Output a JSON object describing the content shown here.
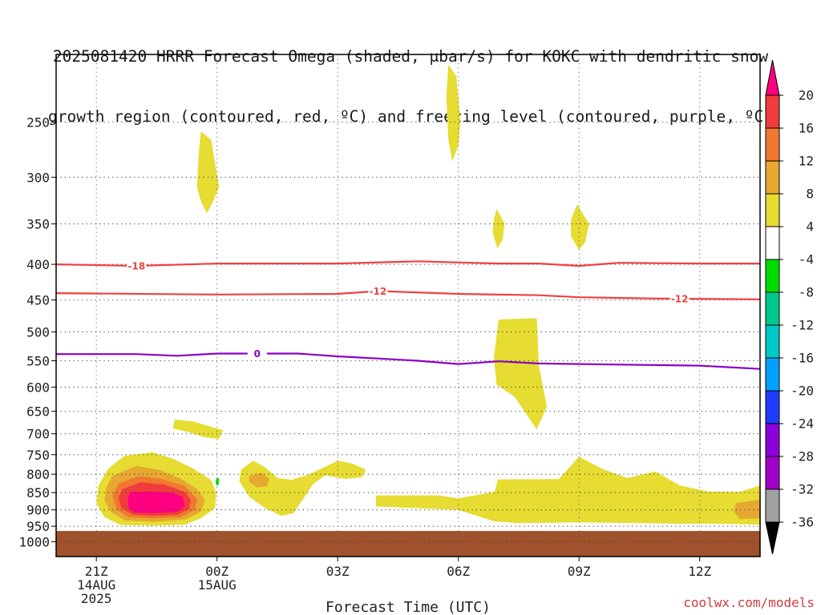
{
  "title_line1": "2025081420 HRRR Forecast Omega (shaded, μbar/s) for KOKC with dendritic snow",
  "title_line2": "growth region (contoured, red, ºC) and freezing level (contoured, purple, ºC)",
  "credit": "coolwx.com/models",
  "chart_data": {
    "type": "contour",
    "title": "2025081420 HRRR Forecast Omega (shaded, μbar/s) for KOKC with dendritic snow growth region (contoured, red, ºC) and freezing level (contoured, purple, ºC)",
    "xlabel": "Forecast Time (UTC)",
    "ylabel": "",
    "xlim": [
      -1,
      16.5
    ],
    "ylim": [
      1050,
      200
    ],
    "y_scale": "log",
    "grid": true,
    "x_ticks": [
      {
        "value": 0,
        "lines": [
          "21Z",
          "14AUG",
          "2025"
        ]
      },
      {
        "value": 3,
        "lines": [
          "00Z",
          "15AUG"
        ]
      },
      {
        "value": 6,
        "lines": [
          "03Z"
        ]
      },
      {
        "value": 9,
        "lines": [
          "06Z"
        ]
      },
      {
        "value": 12,
        "lines": [
          "09Z"
        ]
      },
      {
        "value": 15,
        "lines": [
          "12Z"
        ]
      }
    ],
    "y_ticks": [
      250,
      300,
      350,
      400,
      450,
      500,
      550,
      600,
      650,
      700,
      750,
      800,
      850,
      900,
      950,
      1000
    ],
    "colorbar": {
      "labels": [
        "20",
        "16",
        "12",
        "8",
        "4",
        "-4",
        "-8",
        "-12",
        "-16",
        "-20",
        "-24",
        "-28",
        "-32",
        "-36"
      ],
      "bins": [
        {
          "color": "#ff0080",
          "range": "above 20"
        },
        {
          "color": "#f03c3c",
          "range": "16 to 20"
        },
        {
          "color": "#f07830",
          "range": "12 to 16"
        },
        {
          "color": "#e6a830",
          "range": "8 to 12"
        },
        {
          "color": "#e6dc32",
          "range": "4 to 8"
        },
        {
          "color": "#ffffff",
          "range": "-4 to 4"
        },
        {
          "color": "#00dc00",
          "range": "-8 to -4"
        },
        {
          "color": "#00c88c",
          "range": "-12 to -8"
        },
        {
          "color": "#00c8c8",
          "range": "-16 to -12"
        },
        {
          "color": "#00a0ff",
          "range": "-20 to -16"
        },
        {
          "color": "#1e3cff",
          "range": "-24 to -20"
        },
        {
          "color": "#8c00dc",
          "range": "-28 to -24"
        },
        {
          "color": "#a000c8",
          "range": "-32 to -28"
        },
        {
          "color": "#a0a0a0",
          "range": "-36 to -32"
        },
        {
          "color": "#000000",
          "range": "below -36"
        }
      ]
    },
    "contours": [
      {
        "name": "-18",
        "color": "#f04040",
        "label_at": [
          1,
          400
        ],
        "points": [
          [
            -1,
            400
          ],
          [
            1,
            402
          ],
          [
            3,
            399
          ],
          [
            6,
            399
          ],
          [
            8,
            396
          ],
          [
            10,
            399
          ],
          [
            11,
            399
          ],
          [
            12,
            402
          ],
          [
            13,
            398
          ],
          [
            15,
            399
          ],
          [
            16.5,
            399
          ]
        ]
      },
      {
        "name": "-12",
        "color": "#f04040",
        "label_at": [
          7,
          442
        ],
        "label_at2": [
          14.5,
          448
        ],
        "points": [
          [
            -1,
            440
          ],
          [
            3,
            442
          ],
          [
            6,
            441
          ],
          [
            7,
            437
          ],
          [
            9,
            441
          ],
          [
            11,
            443
          ],
          [
            12,
            446
          ],
          [
            14,
            448
          ],
          [
            16.5,
            449
          ]
        ]
      },
      {
        "name": "0",
        "color": "#8c00c8",
        "label_at": [
          4,
          538
        ],
        "points": [
          [
            -1,
            538
          ],
          [
            1,
            538
          ],
          [
            2,
            541
          ],
          [
            3,
            537
          ],
          [
            5,
            537
          ],
          [
            6,
            542
          ],
          [
            7,
            546
          ],
          [
            8,
            550
          ],
          [
            9,
            556
          ],
          [
            10,
            551
          ],
          [
            11,
            555
          ],
          [
            13,
            557
          ],
          [
            15,
            559
          ],
          [
            16.5,
            565
          ]
        ]
      }
    ],
    "shaded_regions": [
      {
        "level": "4 to 8",
        "points": [
          [
            2.6,
            258
          ],
          [
            2.85,
            265
          ],
          [
            3.05,
            310
          ],
          [
            2.9,
            325
          ],
          [
            2.75,
            338
          ],
          [
            2.6,
            325
          ],
          [
            2.5,
            310
          ],
          [
            2.55,
            275
          ]
        ]
      },
      {
        "level": "4 to 8",
        "points": [
          [
            8.75,
            207
          ],
          [
            8.95,
            215
          ],
          [
            9.05,
            250
          ],
          [
            9.0,
            270
          ],
          [
            8.85,
            285
          ],
          [
            8.75,
            265
          ],
          [
            8.7,
            230
          ]
        ]
      },
      {
        "level": "4 to 8",
        "points": [
          [
            9.95,
            333
          ],
          [
            10.15,
            350
          ],
          [
            10.1,
            368
          ],
          [
            9.97,
            380
          ],
          [
            9.85,
            360
          ],
          [
            9.88,
            345
          ]
        ]
      },
      {
        "level": "4 to 8",
        "points": [
          [
            11.95,
            328
          ],
          [
            12.25,
            350
          ],
          [
            12.15,
            372
          ],
          [
            12.0,
            381
          ],
          [
            11.8,
            365
          ],
          [
            11.8,
            345
          ]
        ]
      },
      {
        "level": "4 to 8",
        "points": [
          [
            10.0,
            480
          ],
          [
            10.95,
            478
          ],
          [
            11.0,
            560
          ],
          [
            11.2,
            640
          ],
          [
            10.95,
            690
          ],
          [
            10.4,
            620
          ],
          [
            9.95,
            595
          ],
          [
            9.88,
            545
          ]
        ]
      },
      {
        "level": "4 to 8",
        "points": [
          [
            1.95,
            668
          ],
          [
            2.4,
            672
          ],
          [
            3.15,
            692
          ],
          [
            3.05,
            712
          ],
          [
            2.7,
            708
          ],
          [
            2.25,
            695
          ],
          [
            1.9,
            688
          ]
        ]
      },
      {
        "level": "4 to 8",
        "points": [
          [
            0.7,
            753
          ],
          [
            1.4,
            744
          ],
          [
            1.9,
            760
          ],
          [
            2.4,
            785
          ],
          [
            2.85,
            815
          ],
          [
            2.98,
            850
          ],
          [
            2.95,
            895
          ],
          [
            2.6,
            925
          ],
          [
            2.2,
            945
          ],
          [
            1.4,
            948
          ],
          [
            0.6,
            946
          ],
          [
            0.2,
            922
          ],
          [
            0.0,
            880
          ],
          [
            0.05,
            830
          ],
          [
            0.3,
            785
          ]
        ]
      },
      {
        "level": "4 to 8",
        "points": [
          [
            3.6,
            788
          ],
          [
            3.9,
            765
          ],
          [
            4.2,
            782
          ],
          [
            4.5,
            810
          ],
          [
            4.85,
            815
          ],
          [
            5.3,
            800
          ],
          [
            5.7,
            780
          ],
          [
            6.0,
            765
          ],
          [
            6.35,
            772
          ],
          [
            6.7,
            788
          ],
          [
            6.6,
            808
          ],
          [
            6.2,
            813
          ],
          [
            5.7,
            803
          ],
          [
            5.4,
            825
          ],
          [
            5.1,
            875
          ],
          [
            4.9,
            910
          ],
          [
            4.6,
            918
          ],
          [
            4.2,
            895
          ],
          [
            3.8,
            862
          ],
          [
            3.55,
            818
          ]
        ]
      },
      {
        "level": "4 to 8",
        "points": [
          [
            6.95,
            858
          ],
          [
            8.5,
            858
          ],
          [
            9.0,
            866
          ],
          [
            9.9,
            848
          ],
          [
            9.98,
            814
          ],
          [
            11.5,
            813
          ],
          [
            12.0,
            755
          ],
          [
            12.6,
            787
          ],
          [
            13.2,
            810
          ],
          [
            13.9,
            793
          ],
          [
            14.5,
            830
          ],
          [
            15.2,
            847
          ],
          [
            16.0,
            848
          ],
          [
            16.5,
            830
          ],
          [
            16.5,
            945
          ],
          [
            15.5,
            942
          ],
          [
            14.5,
            942
          ],
          [
            13.5,
            940
          ],
          [
            12.0,
            938
          ],
          [
            10.5,
            940
          ],
          [
            9.9,
            935
          ],
          [
            9.0,
            900
          ],
          [
            8.0,
            895
          ],
          [
            6.95,
            890
          ]
        ]
      },
      {
        "level": "8 to 12",
        "points": [
          [
            0.4,
            805
          ],
          [
            1.0,
            778
          ],
          [
            1.6,
            790
          ],
          [
            2.1,
            812
          ],
          [
            2.5,
            840
          ],
          [
            2.7,
            870
          ],
          [
            2.6,
            905
          ],
          [
            2.2,
            930
          ],
          [
            1.4,
            936
          ],
          [
            0.7,
            932
          ],
          [
            0.35,
            905
          ],
          [
            0.2,
            870
          ],
          [
            0.25,
            835
          ]
        ]
      },
      {
        "level": "8 to 12",
        "points": [
          [
            3.8,
            804
          ],
          [
            4.1,
            796
          ],
          [
            4.3,
            812
          ],
          [
            4.25,
            832
          ],
          [
            4.0,
            836
          ],
          [
            3.8,
            820
          ]
        ]
      },
      {
        "level": "8 to 12",
        "points": [
          [
            15.9,
            880
          ],
          [
            16.5,
            870
          ],
          [
            16.5,
            925
          ],
          [
            16.0,
            928
          ],
          [
            15.85,
            905
          ]
        ]
      },
      {
        "level": "12 to 16",
        "points": [
          [
            0.55,
            825
          ],
          [
            1.05,
            805
          ],
          [
            1.6,
            812
          ],
          [
            2.2,
            832
          ],
          [
            2.5,
            868
          ],
          [
            2.45,
            900
          ],
          [
            2.1,
            922
          ],
          [
            1.4,
            925
          ],
          [
            0.8,
            922
          ],
          [
            0.5,
            898
          ],
          [
            0.4,
            860
          ]
        ]
      },
      {
        "level": "16 to 20",
        "points": [
          [
            0.65,
            840
          ],
          [
            1.1,
            822
          ],
          [
            1.7,
            828
          ],
          [
            2.2,
            848
          ],
          [
            2.35,
            872
          ],
          [
            2.3,
            898
          ],
          [
            2.0,
            915
          ],
          [
            1.4,
            918
          ],
          [
            0.9,
            914
          ],
          [
            0.62,
            895
          ],
          [
            0.55,
            865
          ]
        ]
      },
      {
        "level": "above 20",
        "points": [
          [
            0.85,
            848
          ],
          [
            1.3,
            847
          ],
          [
            1.9,
            850
          ],
          [
            2.15,
            862
          ],
          [
            2.2,
            890
          ],
          [
            2.0,
            906
          ],
          [
            1.4,
            910
          ],
          [
            0.95,
            908
          ],
          [
            0.8,
            895
          ],
          [
            0.78,
            865
          ]
        ]
      },
      {
        "level": "-8 to -4",
        "points": [
          [
            3.0,
            808
          ],
          [
            3.05,
            813
          ],
          [
            3.04,
            828
          ],
          [
            3.0,
            832
          ],
          [
            2.96,
            820
          ]
        ]
      }
    ],
    "surface": {
      "color": "#a0522d",
      "pressure_top": 965
    }
  }
}
